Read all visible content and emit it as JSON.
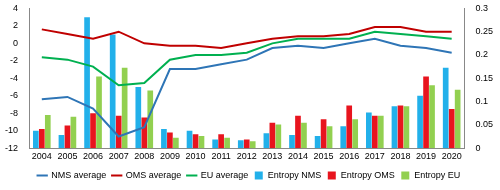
{
  "chart_data": {
    "type": "bar",
    "categories": [
      "2004",
      "2005",
      "2006",
      "2007",
      "2008",
      "2009",
      "2010",
      "2011",
      "2012",
      "2013",
      "2014",
      "2015",
      "2016",
      "2017",
      "2018",
      "2019",
      "2020"
    ],
    "series": [
      {
        "name": "Entropy NMS",
        "type": "bar",
        "color": "#22b0ea",
        "values": [
          -10,
          -10.5,
          3,
          1,
          -5,
          -9.8,
          -10,
          -11,
          -11.1,
          -10.3,
          -10.5,
          -10.6,
          -9.5,
          -7.9,
          -7.2,
          -6,
          -2.8
        ]
      },
      {
        "name": "Entropy OMS",
        "type": "bar",
        "color": "#e8141e",
        "values": [
          -9.8,
          -9.4,
          -8,
          -8.3,
          -8.5,
          -10.2,
          -10.4,
          -10.4,
          -11,
          -9.1,
          -8.3,
          -8.7,
          -7.1,
          -8.3,
          -7.1,
          -3.8,
          -7.5
        ]
      },
      {
        "name": "Entropy EU",
        "type": "bar",
        "color": "#92d050",
        "values": [
          -8.2,
          -8.4,
          -3.8,
          -2.8,
          -5.4,
          -10.8,
          -10.6,
          -10.8,
          -11.2,
          -9.3,
          -9.1,
          -9.5,
          -8.7,
          -8.3,
          -7.2,
          -4.8,
          -5.3
        ]
      },
      {
        "name": "NMS average",
        "type": "line",
        "axis": "y2",
        "color": "#2e75b6",
        "values": [
          0.105,
          0.11,
          0.085,
          0.025,
          0.045,
          0.17,
          0.17,
          0.18,
          0.19,
          0.215,
          0.22,
          0.215,
          0.225,
          0.235,
          0.22,
          0.215,
          0.205
        ]
      },
      {
        "name": "OMS average",
        "type": "line",
        "axis": "y2",
        "color": "#c00000",
        "values": [
          0.255,
          0.245,
          0.235,
          0.25,
          0.225,
          0.22,
          0.22,
          0.215,
          0.225,
          0.235,
          0.24,
          0.24,
          0.245,
          0.26,
          0.26,
          0.25,
          0.25
        ]
      },
      {
        "name": "EU average",
        "type": "line",
        "axis": "y2",
        "color": "#00b050",
        "values": [
          0.195,
          0.19,
          0.175,
          0.135,
          0.14,
          0.19,
          0.2,
          0.2,
          0.205,
          0.225,
          0.235,
          0.235,
          0.235,
          0.25,
          0.245,
          0.24,
          0.235
        ]
      }
    ],
    "ylim": [
      -12,
      4
    ],
    "yticks": [
      -12,
      -10,
      -8,
      -6,
      -4,
      -2,
      0,
      2,
      4
    ],
    "y2lim": [
      0,
      0.3
    ],
    "y2ticks": [
      0,
      0.05,
      0.1,
      0.15,
      0.2,
      0.25,
      0.3
    ],
    "grid": false,
    "legend": "bottom"
  }
}
